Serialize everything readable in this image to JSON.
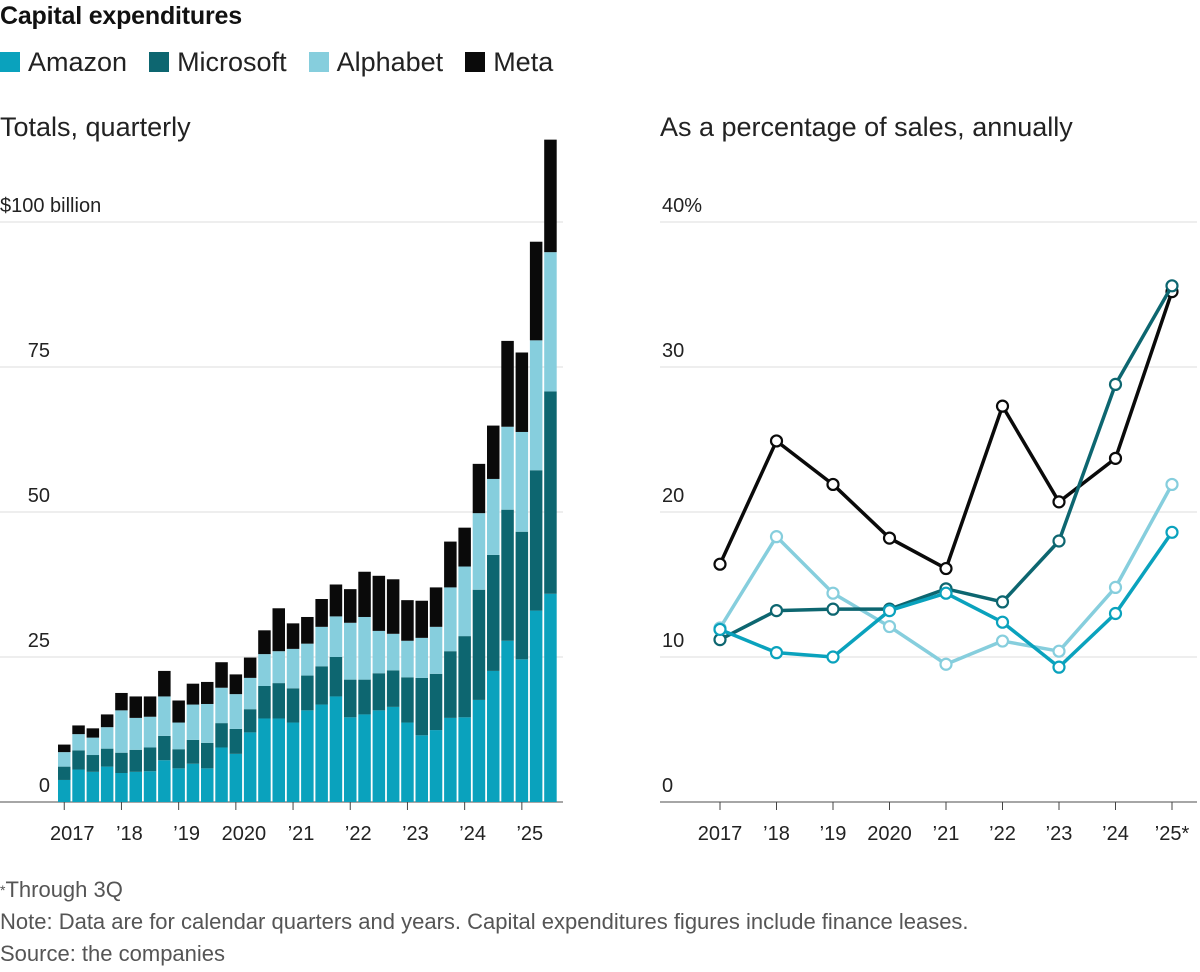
{
  "title": "Capital expenditures",
  "colors": {
    "Amazon": "#0aa2bd",
    "Microsoft": "#0d6670",
    "Alphabet": "#86cedd",
    "Meta": "#0a0a0a"
  },
  "legend": [
    "Amazon",
    "Microsoft",
    "Alphabet",
    "Meta"
  ],
  "footnote": {
    "mark": "*",
    "text": "Through 3Q"
  },
  "note": "Note: Data are for calendar quarters and years. Capital expenditures figures include finance leases.",
  "source": "Source: the companies",
  "chart_data": [
    {
      "type": "bar",
      "stacked": true,
      "title": "Totals, quarterly",
      "unit_label": "$100 billion",
      "ylim": [
        0,
        115
      ],
      "yticks": [
        {
          "value": 0,
          "label": "0"
        },
        {
          "value": 25,
          "label": "25"
        },
        {
          "value": 50,
          "label": "50"
        },
        {
          "value": 75,
          "label": "75"
        },
        {
          "value": 100,
          "label": "$100 billion"
        }
      ],
      "xtick_labels": [
        "2017",
        "’18",
        "’19",
        "2020",
        "’21",
        "’22",
        "’23",
        "’24",
        "’25"
      ],
      "grid": true,
      "series": [
        {
          "name": "Amazon",
          "values": [
            3.8,
            5.6,
            5.2,
            6.1,
            5.0,
            5.2,
            5.3,
            7.2,
            5.8,
            6.6,
            5.8,
            9.4,
            8.3,
            12.0,
            14.4,
            14.4,
            13.7,
            15.8,
            16.8,
            18.2,
            14.6,
            15.1,
            15.8,
            16.4,
            13.7,
            11.5,
            12.4,
            14.5,
            14.6,
            17.6,
            22.6,
            27.8,
            24.6,
            33.0,
            35.9
          ]
        },
        {
          "name": "Microsoft",
          "values": [
            2.3,
            3.3,
            2.9,
            3.1,
            3.5,
            3.8,
            4.1,
            4.2,
            3.3,
            4.1,
            4.4,
            4.2,
            4.3,
            4.0,
            5.6,
            6.1,
            5.9,
            6.0,
            6.6,
            6.8,
            6.5,
            6.0,
            6.4,
            6.3,
            7.8,
            9.9,
            9.7,
            11.5,
            14.0,
            19.0,
            20.0,
            22.6,
            22.0,
            24.2,
            34.9
          ]
        },
        {
          "name": "Alphabet",
          "values": [
            2.5,
            2.8,
            3.0,
            3.7,
            7.3,
            5.5,
            5.3,
            6.8,
            4.6,
            6.1,
            6.7,
            6.1,
            6.0,
            5.4,
            5.5,
            5.5,
            6.8,
            5.5,
            6.8,
            7.0,
            9.8,
            10.8,
            7.3,
            6.3,
            6.3,
            6.9,
            8.1,
            11.0,
            12.0,
            13.2,
            13.1,
            14.3,
            17.2,
            22.4,
            24.0
          ]
        },
        {
          "name": "Meta",
          "values": [
            1.3,
            1.5,
            1.6,
            2.2,
            3.0,
            3.7,
            3.5,
            4.4,
            3.8,
            3.6,
            3.8,
            4.4,
            3.4,
            3.5,
            4.1,
            7.4,
            4.4,
            4.6,
            4.8,
            5.5,
            5.8,
            7.8,
            9.5,
            9.4,
            7.0,
            6.4,
            6.8,
            7.9,
            6.7,
            8.5,
            9.2,
            14.8,
            13.7,
            17.0,
            19.4
          ]
        }
      ]
    },
    {
      "type": "line",
      "title": "As a percentage of sales, annually",
      "x": [
        "2017",
        "’18",
        "’19",
        "2020",
        "’21",
        "’22",
        "’23",
        "’24",
        "’25*"
      ],
      "ylim": [
        0,
        40
      ],
      "yticks": [
        {
          "value": 0,
          "label": "0"
        },
        {
          "value": 10,
          "label": "10"
        },
        {
          "value": 20,
          "label": "20"
        },
        {
          "value": 30,
          "label": "30"
        },
        {
          "value": 40,
          "label": "40%"
        }
      ],
      "grid": true,
      "series": [
        {
          "name": "Meta",
          "values": [
            16.4,
            24.9,
            21.9,
            18.2,
            16.1,
            27.3,
            20.7,
            23.7,
            35.2
          ]
        },
        {
          "name": "Alphabet",
          "values": [
            12.0,
            18.3,
            14.4,
            12.1,
            9.5,
            11.1,
            10.4,
            14.8,
            21.9
          ]
        },
        {
          "name": "Microsoft",
          "values": [
            11.2,
            13.2,
            13.3,
            13.3,
            14.7,
            13.8,
            18.0,
            28.8,
            35.6
          ]
        },
        {
          "name": "Amazon",
          "values": [
            11.9,
            10.3,
            10.0,
            13.2,
            14.4,
            12.4,
            9.3,
            13.0,
            18.6
          ]
        }
      ]
    }
  ]
}
